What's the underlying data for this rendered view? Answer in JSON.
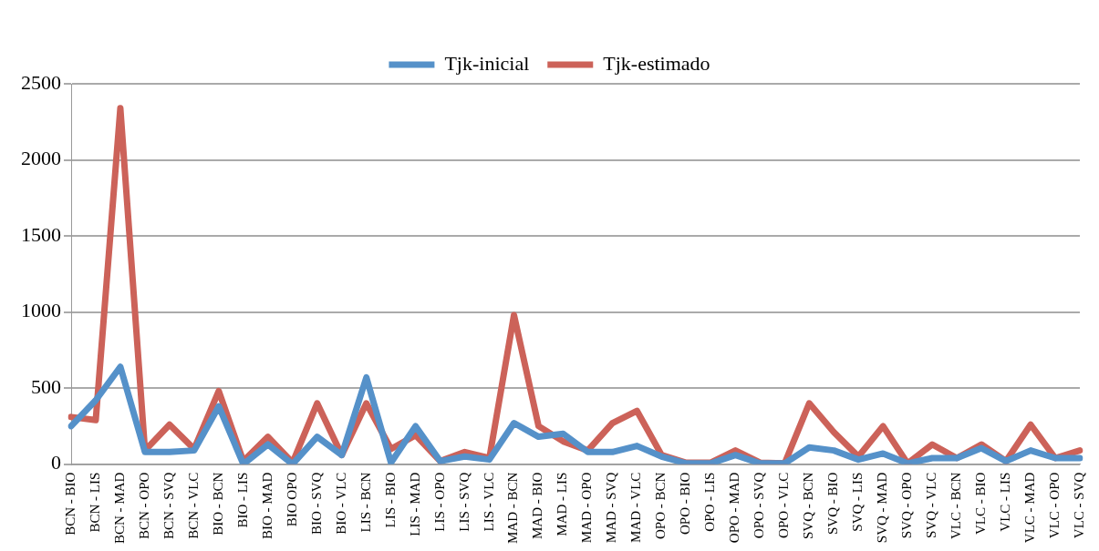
{
  "chart_data": {
    "type": "line",
    "categories": [
      "BCN - BIO",
      "BCN - LIS",
      "BCN - MAD",
      "BCN - OPO",
      "BCN - SVQ",
      "BCN - VLC",
      "BIO - BCN",
      "BIO - LIS",
      "BIO - MAD",
      "BIO OPO",
      "BIO - SVQ",
      "BIO - VLC",
      "LIS - BCN",
      "LIS - BIO",
      "LIS - MAD",
      "LIS - OPO",
      "LIS - SVQ",
      "LIS - VLC",
      "MAD - BCN",
      "MAD - BIO",
      "MAD - LIS",
      "MAD - OPO",
      "MAD - SVQ",
      "MAD - VLC",
      "OPO - BCN",
      "OPO - BIO",
      "OPO - LIS",
      "OPO - MAD",
      "OPO - SVQ",
      "OPO - VLC",
      "SVQ - BCN",
      "SVQ - BIO",
      "SVQ - LIS",
      "SVQ - MAD",
      "SVQ - OPO",
      "SVQ - VLC",
      "VLC - BCN",
      "VLC - BIO",
      "VLC - LIS",
      "VLC - MAD",
      "VLC - OPO",
      "VLC - SVQ"
    ],
    "series": [
      {
        "name": "Tjk-inicial",
        "color": "#5591c9",
        "values": [
          250,
          420,
          640,
          80,
          80,
          90,
          380,
          0,
          130,
          0,
          180,
          60,
          570,
          10,
          250,
          20,
          50,
          30,
          270,
          180,
          200,
          80,
          80,
          120,
          50,
          5,
          5,
          60,
          5,
          5,
          110,
          90,
          30,
          70,
          5,
          40,
          40,
          105,
          20,
          90,
          40,
          40
        ]
      },
      {
        "name": "Tjk-estimado",
        "color": "#cc6259",
        "values": [
          310,
          290,
          2340,
          90,
          260,
          100,
          480,
          20,
          180,
          10,
          400,
          60,
          400,
          100,
          190,
          20,
          80,
          40,
          980,
          250,
          150,
          90,
          270,
          350,
          60,
          10,
          10,
          90,
          10,
          5,
          400,
          210,
          50,
          250,
          5,
          130,
          40,
          130,
          20,
          260,
          40,
          90
        ]
      }
    ],
    "ylim": [
      0,
      2500
    ],
    "yticks": [
      0,
      500,
      1000,
      1500,
      2000,
      2500
    ],
    "grid": "y",
    "legend": "top",
    "marker": "none",
    "line_style": "solid"
  }
}
